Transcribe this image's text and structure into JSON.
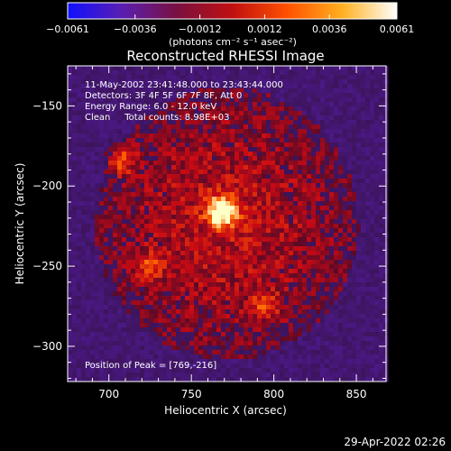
{
  "colorbar": {
    "ticks": [
      "-0.0061",
      "-0.0036",
      "-0.0012",
      "0.0012",
      "0.0036",
      "0.0061"
    ],
    "range": [
      -0.0061,
      0.0061
    ],
    "unit_label": "(photons cm⁻² s⁻¹ asec⁻²)",
    "colors": [
      "#1010ff",
      "#5a1fb0",
      "#7a1040",
      "#c01010",
      "#ff5000",
      "#ffb020",
      "#ffffff"
    ]
  },
  "annotations": {
    "time_range": "11-May-2002 23:41:48.000 to 23:43:44.000",
    "detectors": "Detectors: 3F 4F 5F 6F 7F 8F, Att 0",
    "energy": "Energy Range: 6.0 - 12.0 keV",
    "clean": "Clean     Total counts: 8.98E+03",
    "peak": "Position of Peak = [769,-216]"
  },
  "footer": {
    "timestamp": "29-Apr-2022 02:26"
  },
  "chart_data": {
    "type": "heatmap",
    "title": "Reconstructed RHESSI Image",
    "xlabel": "Heliocentric X (arcsec)",
    "ylabel": "Heliocentric Y (arcsec)",
    "xlim": [
      675,
      868
    ],
    "ylim": [
      -322,
      -125
    ],
    "x_ticks": [
      700,
      750,
      800,
      850
    ],
    "y_ticks": [
      -150,
      -200,
      -250,
      -300
    ],
    "x_tick_labels": [
      "700",
      "750",
      "800",
      "850"
    ],
    "y_tick_labels": [
      "-150",
      "-200",
      "-250",
      "-300"
    ],
    "peak": {
      "x": 769,
      "y": -216
    },
    "secondary_sources": [
      {
        "x": 707,
        "y": -184
      },
      {
        "x": 795,
        "y": -275
      },
      {
        "x": 725,
        "y": -250
      }
    ]
  }
}
